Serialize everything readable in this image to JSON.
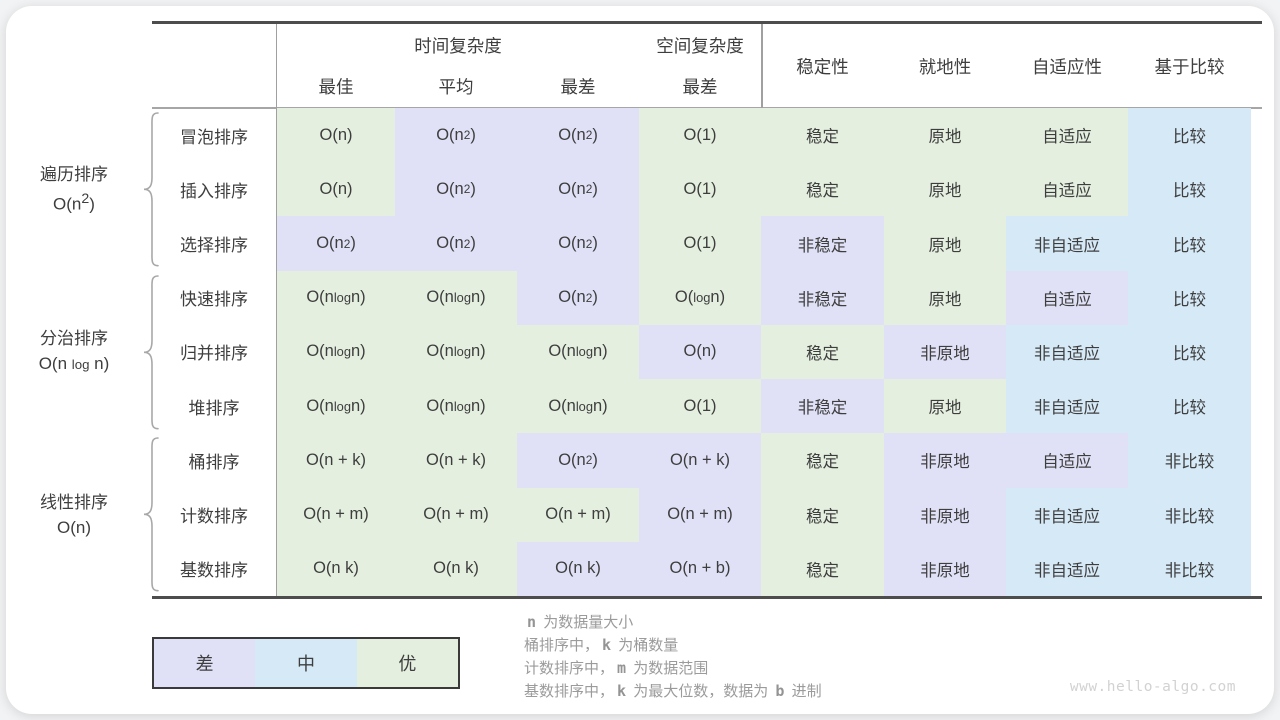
{
  "chart_data": {
    "type": "table",
    "header": {
      "time": "时间复杂度",
      "space": "空间复杂度",
      "sub_best": "最佳",
      "sub_avg": "平均",
      "sub_worst": "最差",
      "sub_space_worst": "最差",
      "stability": "稳定性",
      "in_place": "就地性",
      "adaptive": "自适应性",
      "comparison": "基于比较"
    },
    "groups": [
      {
        "name": "遍历排序",
        "complexity": "O(n^2)"
      },
      {
        "name": "分治排序",
        "complexity": "O(n log n)"
      },
      {
        "name": "线性排序",
        "complexity": "O(n)"
      }
    ],
    "grade_colors": {
      "good": "#e4efdf",
      "mid": "#d6e9f7",
      "bad": "#e0e1f6"
    },
    "rows": [
      {
        "name": "冒泡排序",
        "group": 0,
        "cells": [
          {
            "t": "O(n)",
            "g": "good"
          },
          {
            "t": "O(n^2)",
            "g": "bad"
          },
          {
            "t": "O(n^2)",
            "g": "bad"
          },
          {
            "t": "O(1)",
            "g": "good"
          },
          {
            "t": "稳定",
            "g": "good"
          },
          {
            "t": "原地",
            "g": "good"
          },
          {
            "t": "自适应",
            "g": "good"
          },
          {
            "t": "比较",
            "g": "mid"
          }
        ]
      },
      {
        "name": "插入排序",
        "group": 0,
        "cells": [
          {
            "t": "O(n)",
            "g": "good"
          },
          {
            "t": "O(n^2)",
            "g": "bad"
          },
          {
            "t": "O(n^2)",
            "g": "bad"
          },
          {
            "t": "O(1)",
            "g": "good"
          },
          {
            "t": "稳定",
            "g": "good"
          },
          {
            "t": "原地",
            "g": "good"
          },
          {
            "t": "自适应",
            "g": "good"
          },
          {
            "t": "比较",
            "g": "mid"
          }
        ]
      },
      {
        "name": "选择排序",
        "group": 0,
        "cells": [
          {
            "t": "O(n^2)",
            "g": "bad"
          },
          {
            "t": "O(n^2)",
            "g": "bad"
          },
          {
            "t": "O(n^2)",
            "g": "bad"
          },
          {
            "t": "O(1)",
            "g": "good"
          },
          {
            "t": "非稳定",
            "g": "bad"
          },
          {
            "t": "原地",
            "g": "good"
          },
          {
            "t": "非自适应",
            "g": "mid"
          },
          {
            "t": "比较",
            "g": "mid"
          }
        ]
      },
      {
        "name": "快速排序",
        "group": 1,
        "cells": [
          {
            "t": "O(n log n)",
            "g": "good"
          },
          {
            "t": "O(n log n)",
            "g": "good"
          },
          {
            "t": "O(n^2)",
            "g": "bad"
          },
          {
            "t": "O(log n)",
            "g": "good"
          },
          {
            "t": "非稳定",
            "g": "bad"
          },
          {
            "t": "原地",
            "g": "good"
          },
          {
            "t": "自适应",
            "g": "bad"
          },
          {
            "t": "比较",
            "g": "mid"
          }
        ]
      },
      {
        "name": "归并排序",
        "group": 1,
        "cells": [
          {
            "t": "O(n log n)",
            "g": "good"
          },
          {
            "t": "O(n log n)",
            "g": "good"
          },
          {
            "t": "O(n log n)",
            "g": "good"
          },
          {
            "t": "O(n)",
            "g": "bad"
          },
          {
            "t": "稳定",
            "g": "good"
          },
          {
            "t": "非原地",
            "g": "bad"
          },
          {
            "t": "非自适应",
            "g": "mid"
          },
          {
            "t": "比较",
            "g": "mid"
          }
        ]
      },
      {
        "name": "堆排序",
        "group": 1,
        "cells": [
          {
            "t": "O(n log n)",
            "g": "good"
          },
          {
            "t": "O(n log n)",
            "g": "good"
          },
          {
            "t": "O(n log n)",
            "g": "good"
          },
          {
            "t": "O(1)",
            "g": "good"
          },
          {
            "t": "非稳定",
            "g": "bad"
          },
          {
            "t": "原地",
            "g": "good"
          },
          {
            "t": "非自适应",
            "g": "mid"
          },
          {
            "t": "比较",
            "g": "mid"
          }
        ]
      },
      {
        "name": "桶排序",
        "group": 2,
        "cells": [
          {
            "t": "O(n + k)",
            "g": "good"
          },
          {
            "t": "O(n + k)",
            "g": "good"
          },
          {
            "t": "O(n^2)",
            "g": "bad"
          },
          {
            "t": "O(n + k)",
            "g": "bad"
          },
          {
            "t": "稳定",
            "g": "good"
          },
          {
            "t": "非原地",
            "g": "bad"
          },
          {
            "t": "自适应",
            "g": "bad"
          },
          {
            "t": "非比较",
            "g": "mid"
          }
        ]
      },
      {
        "name": "计数排序",
        "group": 2,
        "cells": [
          {
            "t": "O(n + m)",
            "g": "good"
          },
          {
            "t": "O(n + m)",
            "g": "good"
          },
          {
            "t": "O(n + m)",
            "g": "good"
          },
          {
            "t": "O(n + m)",
            "g": "bad"
          },
          {
            "t": "稳定",
            "g": "good"
          },
          {
            "t": "非原地",
            "g": "bad"
          },
          {
            "t": "非自适应",
            "g": "mid"
          },
          {
            "t": "非比较",
            "g": "mid"
          }
        ]
      },
      {
        "name": "基数排序",
        "group": 2,
        "cells": [
          {
            "t": "O(n k)",
            "g": "good"
          },
          {
            "t": "O(n k)",
            "g": "good"
          },
          {
            "t": "O(n k)",
            "g": "bad"
          },
          {
            "t": "O(n + b)",
            "g": "bad"
          },
          {
            "t": "稳定",
            "g": "good"
          },
          {
            "t": "非原地",
            "g": "bad"
          },
          {
            "t": "非自适应",
            "g": "mid"
          },
          {
            "t": "非比较",
            "g": "mid"
          }
        ]
      }
    ],
    "legend": [
      {
        "label": "差",
        "grade": "bad"
      },
      {
        "label": "中",
        "grade": "mid"
      },
      {
        "label": "优",
        "grade": "good"
      }
    ],
    "notes": [
      "`n` 为数据量大小",
      "桶排序中，`k` 为桶数量",
      "计数排序中，`m` 为数据范围",
      "基数排序中，`k` 为最大位数，数据为 `b` 进制"
    ],
    "watermark": "www.hello-algo.com"
  }
}
